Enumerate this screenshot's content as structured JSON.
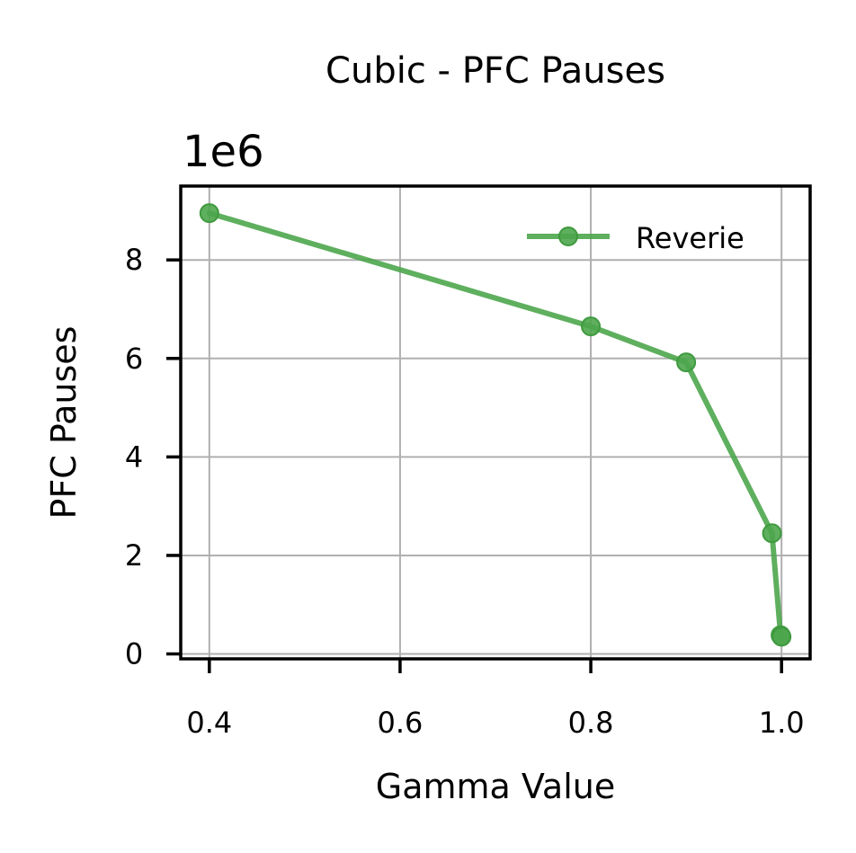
{
  "chart_data": {
    "type": "line",
    "title": "Cubic - PFC Pauses",
    "xlabel": "Gamma Value",
    "ylabel": "PFC Pauses",
    "y_offset_label": "1e6",
    "xlim": [
      0.37,
      1.03
    ],
    "ylim": [
      -0.1,
      9.5
    ],
    "x_ticks": [
      0.4,
      0.6,
      0.8,
      1.0
    ],
    "x_tick_labels": [
      "0.4",
      "0.6",
      "0.8",
      "1.0"
    ],
    "y_ticks": [
      0,
      2,
      4,
      6,
      8
    ],
    "y_tick_labels": [
      "0",
      "2",
      "4",
      "6",
      "8"
    ],
    "grid": true,
    "legend_position": "top-right",
    "series": [
      {
        "name": "Reverie",
        "color": "#4ca64c",
        "x": [
          0.4,
          0.8,
          0.9,
          0.99,
          0.999,
          1.0
        ],
        "y": [
          8.95,
          6.65,
          5.92,
          2.45,
          0.38,
          0.35
        ]
      }
    ]
  }
}
